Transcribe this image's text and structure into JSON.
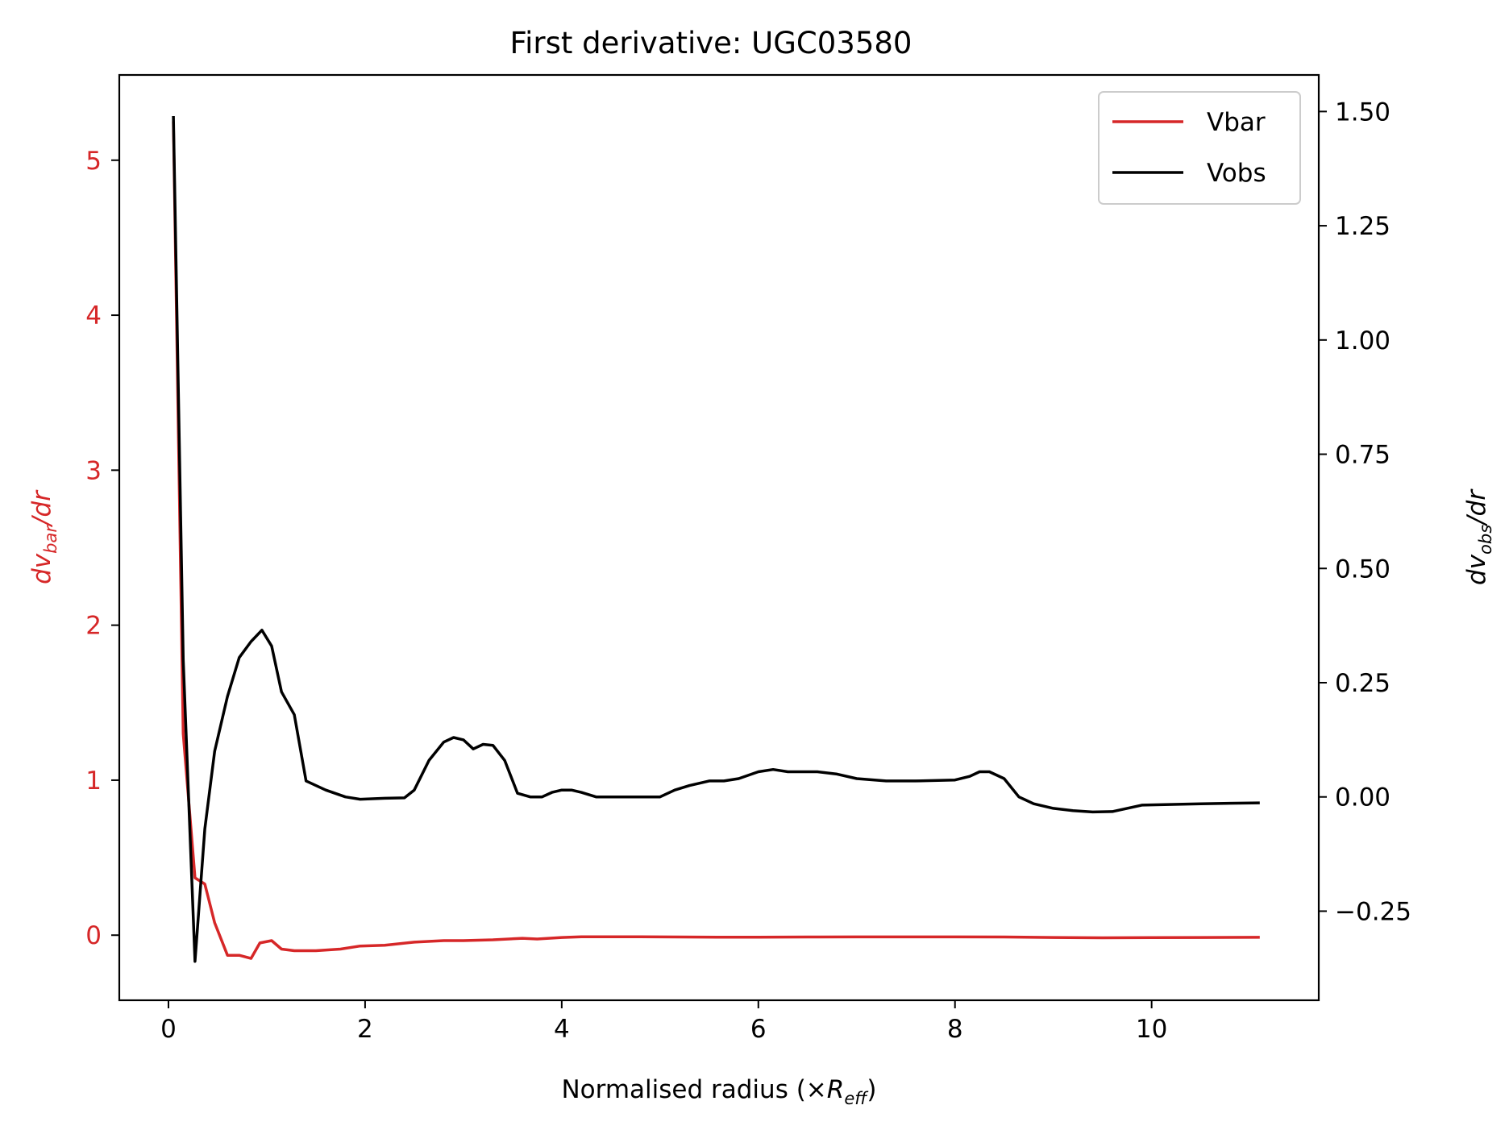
{
  "chart_data": {
    "type": "line",
    "title": "First derivative: UGC03580",
    "xlabel_prefix": "Normalised radius (×",
    "xlabel_symbol": "R",
    "xlabel_sub": "eff",
    "xlabel_suffix": ")",
    "ylabel_left": {
      "prefix": "dv",
      "sub": "bar",
      "suffix": "/dr"
    },
    "ylabel_right": {
      "prefix": "dv",
      "sub": "obs",
      "suffix": "/dr"
    },
    "xlim": [
      -0.5,
      11.7
    ],
    "ylim_left": [
      -0.42,
      5.55
    ],
    "ylim_right": [
      -0.445,
      1.58
    ],
    "x_ticks": [
      0,
      2,
      4,
      6,
      8,
      10
    ],
    "x_tick_labels": [
      "0",
      "2",
      "4",
      "6",
      "8",
      "10"
    ],
    "y_left_ticks": [
      0,
      1,
      2,
      3,
      4,
      5
    ],
    "y_left_tick_labels": [
      "0",
      "1",
      "2",
      "3",
      "4",
      "5"
    ],
    "y_right_ticks": [
      -0.25,
      0,
      0.25,
      0.5,
      0.75,
      1.0,
      1.25,
      1.5
    ],
    "y_right_tick_labels": [
      "−0.25",
      "0.00",
      "0.25",
      "0.50",
      "0.75",
      "1.00",
      "1.25",
      "1.50"
    ],
    "grid": false,
    "legend_position": "top-right",
    "colors": {
      "vbar": "#d62728",
      "vobs": "#000000",
      "left_axis": "#d62728",
      "right_axis": "#000000"
    },
    "series": [
      {
        "name": "Vbar",
        "axis": "left",
        "x": [
          0.05,
          0.15,
          0.27,
          0.37,
          0.47,
          0.6,
          0.72,
          0.84,
          0.93,
          1.05,
          1.15,
          1.28,
          1.5,
          1.75,
          1.95,
          2.2,
          2.5,
          2.8,
          3.0,
          3.3,
          3.6,
          3.75,
          4.0,
          4.2,
          4.5,
          4.8,
          5.2,
          5.6,
          6.0,
          6.5,
          7.0,
          7.5,
          8.0,
          8.5,
          9.0,
          9.5,
          10.0,
          10.5,
          11.1
        ],
        "y": [
          5.25,
          1.3,
          0.37,
          0.33,
          0.08,
          -0.13,
          -0.13,
          -0.15,
          -0.05,
          -0.035,
          -0.09,
          -0.1,
          -0.1,
          -0.09,
          -0.07,
          -0.065,
          -0.045,
          -0.035,
          -0.035,
          -0.03,
          -0.02,
          -0.025,
          -0.015,
          -0.01,
          -0.01,
          -0.01,
          -0.012,
          -0.013,
          -0.013,
          -0.012,
          -0.011,
          -0.011,
          -0.011,
          -0.012,
          -0.015,
          -0.017,
          -0.016,
          -0.015,
          -0.014
        ]
      },
      {
        "name": "Vobs",
        "axis": "right",
        "x": [
          0.05,
          0.15,
          0.27,
          0.37,
          0.47,
          0.6,
          0.72,
          0.84,
          0.95,
          1.05,
          1.15,
          1.28,
          1.4,
          1.6,
          1.8,
          1.95,
          2.2,
          2.4,
          2.5,
          2.65,
          2.8,
          2.9,
          3.0,
          3.1,
          3.2,
          3.3,
          3.42,
          3.55,
          3.68,
          3.8,
          3.9,
          4.0,
          4.1,
          4.2,
          4.35,
          4.6,
          4.8,
          5.0,
          5.15,
          5.3,
          5.5,
          5.65,
          5.8,
          6.0,
          6.15,
          6.3,
          6.6,
          6.8,
          7.0,
          7.3,
          7.6,
          8.0,
          8.15,
          8.25,
          8.35,
          8.5,
          8.65,
          8.8,
          9.0,
          9.2,
          9.4,
          9.6,
          9.75,
          9.9,
          10.5,
          11.1
        ],
        "y": [
          1.49,
          0.3,
          -0.36,
          -0.07,
          0.1,
          0.22,
          0.305,
          0.34,
          0.365,
          0.33,
          0.23,
          0.18,
          0.035,
          0.015,
          0.0,
          -0.005,
          -0.003,
          -0.002,
          0.015,
          0.08,
          0.12,
          0.13,
          0.125,
          0.105,
          0.115,
          0.113,
          0.08,
          0.008,
          0.0,
          0.0,
          0.01,
          0.015,
          0.015,
          0.01,
          0.0,
          0.0,
          0.0,
          0.0,
          0.015,
          0.025,
          0.035,
          0.035,
          0.04,
          0.055,
          0.06,
          0.055,
          0.055,
          0.05,
          0.04,
          0.035,
          0.035,
          0.037,
          0.045,
          0.055,
          0.055,
          0.04,
          0.0,
          -0.015,
          -0.025,
          -0.03,
          -0.033,
          -0.032,
          -0.025,
          -0.018,
          -0.015,
          -0.013
        ]
      }
    ]
  }
}
